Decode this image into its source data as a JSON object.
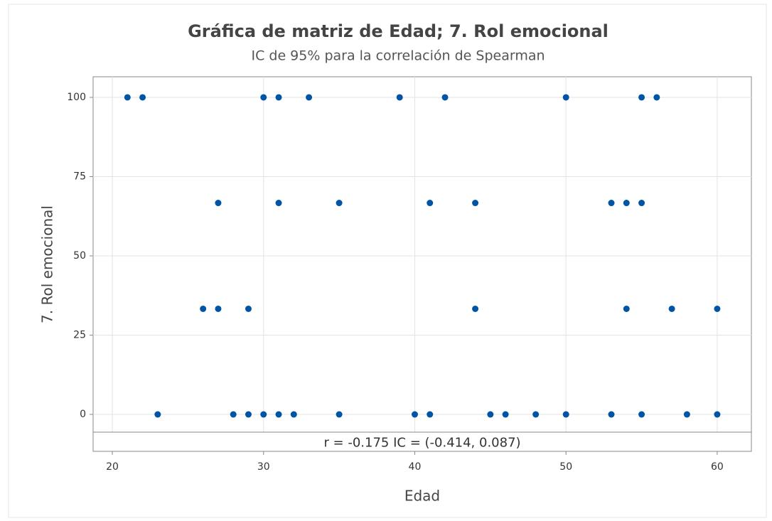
{
  "chart_data": {
    "type": "scatter",
    "title": "Gráfica de matriz de Edad; 7. Rol emocional",
    "subtitle": "IC de 95% para la correlación de Spearman",
    "x_label": "Edad",
    "y_label": "7. Rol emocional",
    "annotation": "r = -0.175  IC = (-0.414, 0.087)",
    "color": "#0054a6",
    "x": [
      21,
      22,
      30,
      31,
      33,
      39,
      42,
      50,
      55,
      56,
      27,
      31,
      35,
      41,
      44,
      53,
      54,
      55,
      26,
      27,
      29,
      44,
      54,
      57,
      60,
      23,
      28,
      29,
      30,
      31,
      32,
      35,
      40,
      41,
      45,
      46,
      48,
      50,
      53,
      55,
      58,
      60
    ],
    "values": [
      100,
      100,
      100,
      100,
      100,
      100,
      100,
      100,
      100,
      100,
      66.7,
      66.7,
      66.7,
      66.7,
      66.7,
      66.7,
      66.7,
      66.7,
      33.3,
      33.3,
      33.3,
      33.3,
      33.3,
      33.3,
      33.3,
      0,
      0,
      0,
      0,
      0,
      0,
      0,
      0,
      0,
      0,
      0,
      0,
      0,
      0,
      0,
      0,
      0
    ],
    "xlim": [
      18.73,
      62.26
    ],
    "xticks": [
      20,
      30,
      40,
      50,
      60
    ],
    "ylim": [
      -5.6,
      106.5
    ],
    "yticks": [
      0,
      25,
      50,
      75,
      100
    ],
    "grid": true
  }
}
